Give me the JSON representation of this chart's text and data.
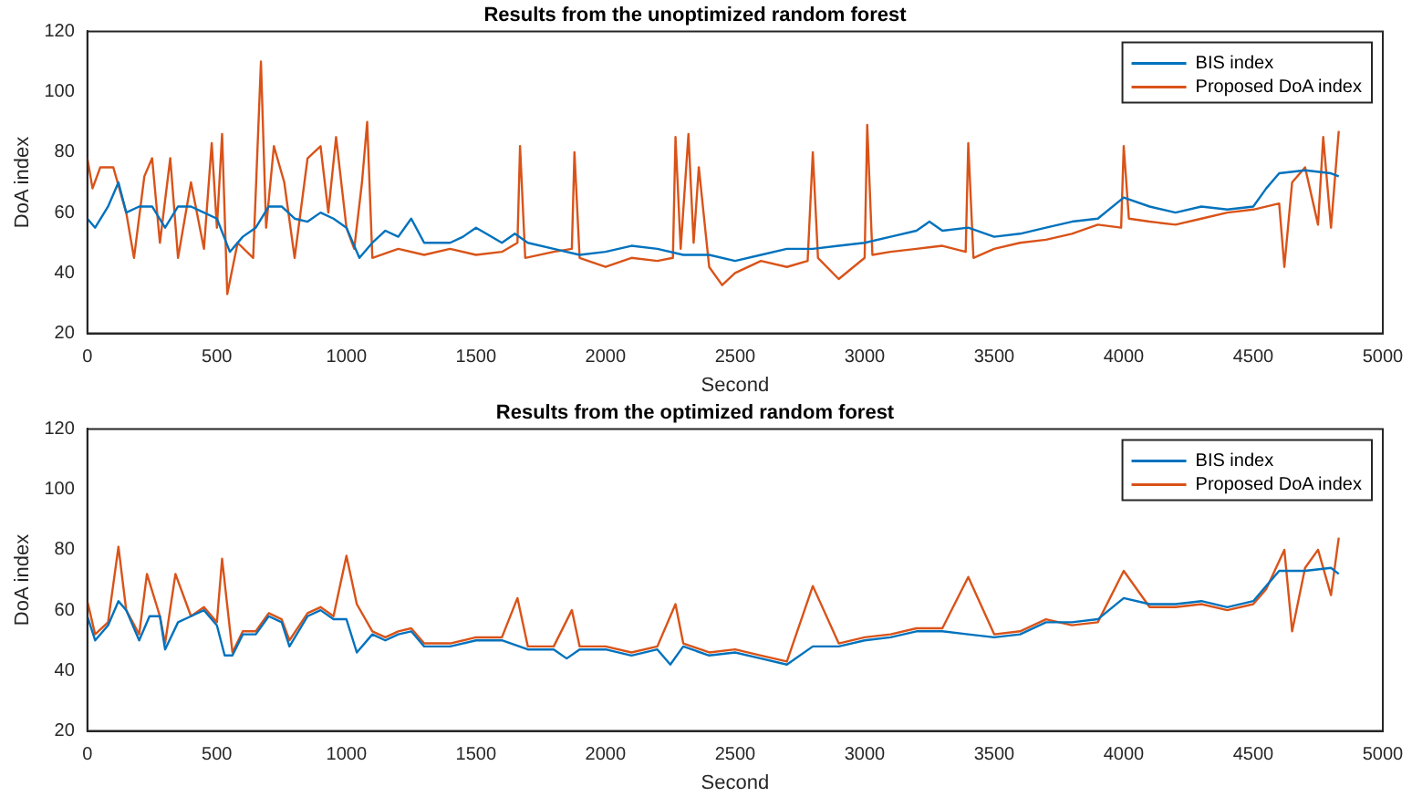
{
  "chart_data": [
    {
      "type": "line",
      "title": "Results from the unoptimized random forest",
      "xlabel": "Second",
      "ylabel": "DoA index",
      "xlim": [
        0,
        5000
      ],
      "xticks": [
        0,
        500,
        1000,
        1500,
        2000,
        2500,
        3000,
        3500,
        4000,
        4500,
        5000
      ],
      "ylim": [
        20,
        120
      ],
      "yticks": [
        20,
        40,
        60,
        80,
        100,
        120
      ],
      "grid": false,
      "legend": "top right",
      "marker": "none",
      "series": [
        {
          "name": "BIS index",
          "color": "#0072bd",
          "x": [
            0,
            30,
            80,
            120,
            150,
            200,
            250,
            300,
            350,
            400,
            450,
            500,
            550,
            600,
            650,
            700,
            750,
            800,
            850,
            900,
            950,
            1000,
            1050,
            1100,
            1150,
            1200,
            1250,
            1300,
            1400,
            1450,
            1500,
            1600,
            1650,
            1700,
            1800,
            1900,
            2000,
            2100,
            2200,
            2300,
            2400,
            2500,
            2600,
            2700,
            2800,
            2900,
            3000,
            3100,
            3200,
            3250,
            3300,
            3400,
            3500,
            3600,
            3700,
            3800,
            3900,
            4000,
            4100,
            4200,
            4300,
            4400,
            4500,
            4550,
            4600,
            4700,
            4800,
            4830
          ],
          "values": [
            58,
            55,
            62,
            70,
            60,
            62,
            62,
            55,
            62,
            62,
            60,
            58,
            47,
            52,
            55,
            62,
            62,
            58,
            57,
            60,
            58,
            55,
            45,
            50,
            54,
            52,
            58,
            50,
            50,
            52,
            55,
            50,
            53,
            50,
            48,
            46,
            47,
            49,
            48,
            46,
            46,
            44,
            46,
            48,
            48,
            49,
            50,
            52,
            54,
            57,
            54,
            55,
            52,
            53,
            55,
            57,
            58,
            65,
            62,
            60,
            62,
            61,
            62,
            68,
            73,
            74,
            73,
            72
          ]
        },
        {
          "name": "Proposed DoA index",
          "color": "#d95319",
          "x": [
            0,
            20,
            50,
            100,
            150,
            180,
            220,
            250,
            280,
            320,
            350,
            400,
            450,
            480,
            500,
            520,
            540,
            580,
            640,
            670,
            690,
            720,
            760,
            800,
            850,
            900,
            930,
            960,
            1000,
            1030,
            1060,
            1080,
            1100,
            1200,
            1300,
            1400,
            1500,
            1600,
            1660,
            1670,
            1690,
            1800,
            1870,
            1880,
            1900,
            2000,
            2100,
            2200,
            2260,
            2270,
            2290,
            2320,
            2340,
            2360,
            2400,
            2450,
            2500,
            2600,
            2700,
            2780,
            2800,
            2820,
            2900,
            3000,
            3010,
            3030,
            3100,
            3200,
            3300,
            3390,
            3400,
            3420,
            3500,
            3600,
            3700,
            3800,
            3900,
            3990,
            4000,
            4020,
            4100,
            4200,
            4300,
            4400,
            4500,
            4600,
            4620,
            4650,
            4700,
            4750,
            4770,
            4800,
            4830
          ],
          "values": [
            78,
            68,
            75,
            75,
            60,
            45,
            72,
            78,
            50,
            78,
            45,
            70,
            48,
            83,
            55,
            86,
            33,
            50,
            45,
            110,
            55,
            82,
            70,
            45,
            78,
            82,
            60,
            85,
            55,
            48,
            70,
            90,
            45,
            48,
            46,
            48,
            46,
            47,
            50,
            82,
            45,
            47,
            48,
            80,
            45,
            42,
            45,
            44,
            45,
            85,
            48,
            86,
            50,
            75,
            42,
            36,
            40,
            44,
            42,
            44,
            80,
            45,
            38,
            45,
            89,
            46,
            47,
            48,
            49,
            47,
            83,
            45,
            48,
            50,
            51,
            53,
            56,
            55,
            82,
            58,
            57,
            56,
            58,
            60,
            61,
            63,
            42,
            70,
            75,
            56,
            85,
            55,
            87
          ]
        }
      ]
    },
    {
      "type": "line",
      "title": "Results from the optimized random forest",
      "xlabel": "Second",
      "ylabel": "DoA index",
      "xlim": [
        0,
        5000
      ],
      "xticks": [
        0,
        500,
        1000,
        1500,
        2000,
        2500,
        3000,
        3500,
        4000,
        4500,
        5000
      ],
      "ylim": [
        20,
        120
      ],
      "yticks": [
        20,
        40,
        60,
        80,
        100,
        120
      ],
      "grid": false,
      "legend": "top right",
      "marker": "none",
      "series": [
        {
          "name": "BIS index",
          "color": "#0072bd",
          "x": [
            0,
            30,
            80,
            120,
            150,
            200,
            240,
            280,
            300,
            350,
            400,
            450,
            500,
            530,
            560,
            600,
            650,
            700,
            750,
            780,
            850,
            900,
            950,
            1000,
            1040,
            1100,
            1150,
            1200,
            1250,
            1300,
            1400,
            1500,
            1600,
            1700,
            1800,
            1850,
            1900,
            2000,
            2100,
            2200,
            2250,
            2300,
            2400,
            2500,
            2600,
            2700,
            2800,
            2900,
            3000,
            3100,
            3200,
            3300,
            3400,
            3500,
            3600,
            3700,
            3800,
            3900,
            4000,
            4100,
            4200,
            4300,
            4400,
            4500,
            4550,
            4600,
            4700,
            4800,
            4830
          ],
          "values": [
            58,
            50,
            55,
            63,
            60,
            50,
            58,
            58,
            47,
            56,
            58,
            60,
            55,
            45,
            45,
            52,
            52,
            58,
            56,
            48,
            58,
            60,
            57,
            57,
            46,
            52,
            50,
            52,
            53,
            48,
            48,
            50,
            50,
            47,
            47,
            44,
            47,
            47,
            45,
            47,
            42,
            48,
            45,
            46,
            44,
            42,
            48,
            48,
            50,
            51,
            53,
            53,
            52,
            51,
            52,
            56,
            56,
            57,
            64,
            62,
            62,
            63,
            61,
            63,
            68,
            73,
            73,
            74,
            72
          ]
        },
        {
          "name": "Proposed DoA index",
          "color": "#d95319",
          "x": [
            0,
            30,
            80,
            120,
            150,
            200,
            230,
            280,
            300,
            340,
            400,
            450,
            500,
            520,
            560,
            600,
            650,
            700,
            750,
            780,
            850,
            900,
            950,
            1000,
            1040,
            1100,
            1150,
            1200,
            1250,
            1300,
            1400,
            1500,
            1600,
            1660,
            1700,
            1800,
            1870,
            1900,
            2000,
            2100,
            2200,
            2270,
            2300,
            2400,
            2500,
            2600,
            2700,
            2800,
            2900,
            3000,
            3100,
            3200,
            3300,
            3400,
            3500,
            3600,
            3700,
            3800,
            3900,
            4000,
            4100,
            4200,
            4300,
            4400,
            4500,
            4550,
            4620,
            4650,
            4700,
            4750,
            4800,
            4830
          ],
          "values": [
            63,
            52,
            56,
            81,
            60,
            52,
            72,
            58,
            49,
            72,
            58,
            61,
            56,
            77,
            46,
            53,
            53,
            59,
            57,
            50,
            59,
            61,
            58,
            78,
            62,
            53,
            51,
            53,
            54,
            49,
            49,
            51,
            51,
            64,
            48,
            48,
            60,
            48,
            48,
            46,
            48,
            62,
            49,
            46,
            47,
            45,
            43,
            68,
            49,
            51,
            52,
            54,
            54,
            71,
            52,
            53,
            57,
            55,
            56,
            73,
            61,
            61,
            62,
            60,
            62,
            67,
            80,
            53,
            74,
            80,
            65,
            84
          ]
        }
      ]
    }
  ]
}
